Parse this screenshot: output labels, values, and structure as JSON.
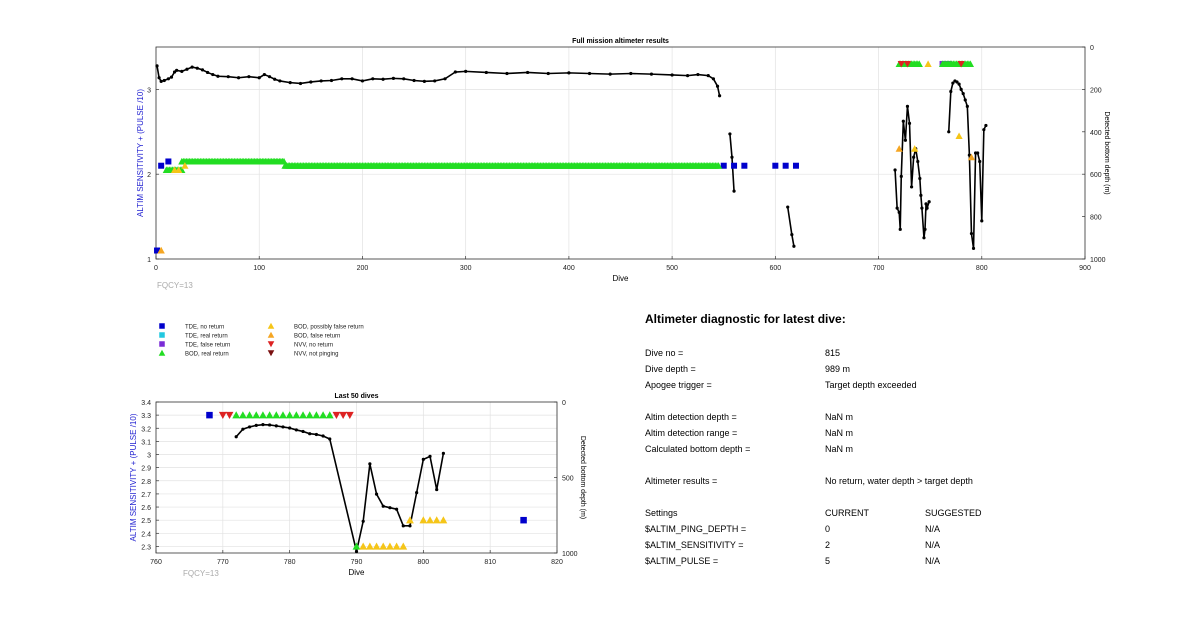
{
  "chart_data": [
    {
      "type": "scatter",
      "title": "Full mission altimeter results",
      "xlabel": "Dive",
      "ylabel": "ALTIM SENSITIVITY + (PULSE /10)",
      "y2label": "Detected bottom depth (m)",
      "xlim": [
        0,
        900
      ],
      "ylim": [
        1,
        3.5
      ],
      "y2lim": [
        1000,
        0
      ],
      "xticks": [
        0,
        100,
        200,
        300,
        400,
        500,
        600,
        700,
        800,
        900
      ],
      "yticks": [
        1,
        2,
        3
      ],
      "y2ticks": [
        0,
        200,
        400,
        600,
        800,
        1000
      ],
      "grid": true,
      "note": "FQCY=13",
      "depth_series": {
        "name": "Detected bottom depth",
        "points": [
          [
            1,
            89
          ],
          [
            3,
            145
          ],
          [
            5,
            162
          ],
          [
            8,
            158
          ],
          [
            12,
            150
          ],
          [
            15,
            142
          ],
          [
            18,
            118
          ],
          [
            20,
            110
          ],
          [
            25,
            115
          ],
          [
            30,
            105
          ],
          [
            35,
            95
          ],
          [
            40,
            100
          ],
          [
            45,
            108
          ],
          [
            50,
            120
          ],
          [
            55,
            130
          ],
          [
            60,
            138
          ],
          [
            70,
            140
          ],
          [
            80,
            145
          ],
          [
            90,
            140
          ],
          [
            100,
            145
          ],
          [
            105,
            130
          ],
          [
            110,
            140
          ],
          [
            115,
            152
          ],
          [
            120,
            160
          ],
          [
            130,
            168
          ],
          [
            140,
            172
          ],
          [
            150,
            165
          ],
          [
            160,
            160
          ],
          [
            170,
            158
          ],
          [
            180,
            150
          ],
          [
            190,
            150
          ],
          [
            200,
            160
          ],
          [
            210,
            150
          ],
          [
            220,
            152
          ],
          [
            230,
            148
          ],
          [
            240,
            150
          ],
          [
            250,
            158
          ],
          [
            260,
            162
          ],
          [
            270,
            160
          ],
          [
            280,
            150
          ],
          [
            290,
            118
          ],
          [
            300,
            115
          ],
          [
            320,
            120
          ],
          [
            340,
            125
          ],
          [
            360,
            120
          ],
          [
            380,
            125
          ],
          [
            400,
            122
          ],
          [
            420,
            125
          ],
          [
            440,
            128
          ],
          [
            460,
            125
          ],
          [
            480,
            128
          ],
          [
            500,
            132
          ],
          [
            515,
            135
          ],
          [
            525,
            130
          ],
          [
            535,
            135
          ],
          [
            540,
            150
          ],
          [
            544,
            185
          ],
          [
            546,
            230
          ]
        ],
        "dive_points": [
          [
            556,
            410
          ],
          [
            558,
            520
          ],
          [
            560,
            680
          ],
          [
            612,
            755
          ],
          [
            616,
            885
          ],
          [
            618,
            940
          ],
          [
            716,
            580
          ],
          [
            718,
            760
          ],
          [
            720,
            780
          ],
          [
            721,
            860
          ],
          [
            722,
            610
          ],
          [
            724,
            350
          ],
          [
            726,
            440
          ],
          [
            728,
            280
          ],
          [
            730,
            360
          ],
          [
            732,
            660
          ],
          [
            734,
            520
          ],
          [
            736,
            480
          ],
          [
            738,
            540
          ],
          [
            740,
            620
          ],
          [
            741,
            700
          ],
          [
            742,
            760
          ],
          [
            744,
            900
          ],
          [
            745,
            860
          ],
          [
            746,
            740
          ],
          [
            747,
            760
          ],
          [
            749,
            730
          ],
          [
            768,
            400
          ],
          [
            770,
            210
          ],
          [
            772,
            170
          ],
          [
            774,
            160
          ],
          [
            776,
            165
          ],
          [
            778,
            175
          ],
          [
            780,
            200
          ],
          [
            782,
            220
          ],
          [
            784,
            250
          ],
          [
            786,
            280
          ],
          [
            788,
            510
          ],
          [
            790,
            880
          ],
          [
            792,
            950
          ],
          [
            794,
            500
          ],
          [
            796,
            500
          ],
          [
            798,
            540
          ],
          [
            800,
            820
          ],
          [
            802,
            390
          ],
          [
            804,
            370
          ]
        ]
      },
      "markers": {
        "TDE_no_return": [
          [
            1,
            1.1
          ],
          [
            5,
            2.1
          ],
          [
            12,
            2.15
          ],
          [
            550,
            2.1
          ],
          [
            560,
            2.1
          ],
          [
            570,
            2.1
          ],
          [
            600,
            2.1
          ],
          [
            610,
            2.1
          ],
          [
            620,
            2.1
          ]
        ],
        "TDE_false_return": [
          [
            762,
            3.3
          ],
          [
            768,
            3.3
          ]
        ],
        "BOD_real_return": {
          "segments": [
            [
              10,
              25,
              2.05
            ],
            [
              25,
              125,
              2.15
            ],
            [
              125,
              545,
              2.1
            ],
            [
              720,
              740,
              3.3
            ],
            [
              762,
              790,
              3.3
            ]
          ]
        },
        "BOD_possibly_false_return": [
          [
            5,
            1.1
          ],
          [
            18,
            2.05
          ],
          [
            22,
            2.05
          ],
          [
            28,
            2.1
          ],
          [
            735,
            2.3
          ],
          [
            748,
            3.3
          ],
          [
            778,
            2.45
          ]
        ],
        "BOD_false_return": [
          [
            5,
            1.1
          ],
          [
            720,
            2.3
          ],
          [
            790,
            2.2
          ]
        ],
        "NVV_no_return": [
          [
            722,
            3.3
          ],
          [
            728,
            3.3
          ],
          [
            780,
            3.3
          ]
        ]
      }
    },
    {
      "type": "scatter",
      "title": "Last 50 dives",
      "xlabel": "Dive",
      "ylabel": "ALTIM SENSITIVITY + (PULSE /10)",
      "y2label": "Detected bottom depth (m)",
      "xlim": [
        760,
        820
      ],
      "ylim": [
        2.25,
        3.4
      ],
      "y2lim": [
        1000,
        0
      ],
      "xticks": [
        760,
        770,
        780,
        790,
        800,
        810,
        820
      ],
      "yticks": [
        2.3,
        2.4,
        2.5,
        2.6,
        2.7,
        2.8,
        2.9,
        3,
        3.1,
        3.2,
        3.3,
        3.4
      ],
      "y2ticks": [
        0,
        500,
        1000
      ],
      "grid": true,
      "note": "FQCY=13",
      "depth_series": {
        "name": "Detected bottom depth",
        "points": [
          [
            772,
            230
          ],
          [
            773,
            180
          ],
          [
            774,
            165
          ],
          [
            775,
            155
          ],
          [
            776,
            150
          ],
          [
            777,
            152
          ],
          [
            778,
            158
          ],
          [
            779,
            165
          ],
          [
            780,
            172
          ],
          [
            781,
            185
          ],
          [
            782,
            195
          ],
          [
            783,
            210
          ],
          [
            784,
            215
          ],
          [
            785,
            225
          ],
          [
            786,
            245
          ],
          [
            790,
            990
          ],
          [
            791,
            790
          ],
          [
            792,
            410
          ],
          [
            793,
            610
          ],
          [
            794,
            690
          ],
          [
            795,
            700
          ],
          [
            796,
            710
          ],
          [
            797,
            820
          ],
          [
            798,
            820
          ],
          [
            799,
            600
          ],
          [
            800,
            380
          ],
          [
            801,
            360
          ],
          [
            802,
            580
          ],
          [
            803,
            340
          ]
        ]
      },
      "markers": {
        "TDE_no_return": [
          [
            768,
            3.3
          ],
          [
            815,
            2.5
          ]
        ],
        "NVV_no_return": [
          [
            770,
            3.3
          ],
          [
            771,
            3.3
          ],
          [
            787,
            3.3
          ],
          [
            788,
            3.3
          ],
          [
            789,
            3.3
          ]
        ],
        "BOD_real_return": [
          [
            772,
            3.3
          ],
          [
            773,
            3.3
          ],
          [
            774,
            3.3
          ],
          [
            775,
            3.3
          ],
          [
            776,
            3.3
          ],
          [
            777,
            3.3
          ],
          [
            778,
            3.3
          ],
          [
            779,
            3.3
          ],
          [
            780,
            3.3
          ],
          [
            781,
            3.3
          ],
          [
            782,
            3.3
          ],
          [
            783,
            3.3
          ],
          [
            784,
            3.3
          ],
          [
            785,
            3.3
          ],
          [
            786,
            3.3
          ],
          [
            790,
            2.3
          ]
        ],
        "BOD_possibly_false_return": [
          [
            791,
            2.3
          ],
          [
            792,
            2.3
          ],
          [
            793,
            2.3
          ],
          [
            794,
            2.3
          ],
          [
            795,
            2.3
          ],
          [
            796,
            2.3
          ],
          [
            797,
            2.3
          ],
          [
            798,
            2.5
          ],
          [
            800,
            2.5
          ],
          [
            801,
            2.5
          ],
          [
            802,
            2.5
          ],
          [
            803,
            2.5
          ]
        ]
      }
    }
  ],
  "legend": {
    "items": [
      {
        "label": "TDE, no return",
        "shape": "square",
        "color": "#0000cc"
      },
      {
        "label": "TDE, real return",
        "shape": "square",
        "color": "#22c8e0"
      },
      {
        "label": "TDE, false return",
        "shape": "square",
        "color": "#7a2bd6"
      },
      {
        "label": "BOD, real return",
        "shape": "triangle-up",
        "color": "#22dd22"
      },
      {
        "label": "BOD, possibly false return",
        "shape": "triangle-up",
        "color": "#f5c518"
      },
      {
        "label": "BOD, false return",
        "shape": "triangle-up",
        "color": "#f5a623"
      },
      {
        "label": "NVV, no return",
        "shape": "triangle-down",
        "color": "#dd2222"
      },
      {
        "label": "NVV, not pinging",
        "shape": "triangle-down",
        "color": "#7a1010"
      }
    ]
  },
  "colors": {
    "axis_label_blue": "#1f1fd0",
    "grid": "#e2e2e2",
    "fqcy_gray": "#aaaaaa"
  },
  "diagnostic": {
    "title": "Altimeter diagnostic for latest dive:",
    "rows": [
      {
        "label": "Dive no =",
        "value": "815"
      },
      {
        "label": "Dive depth =",
        "value": "989 m"
      },
      {
        "label": "Apogee trigger =",
        "value": "Target depth exceeded"
      },
      {
        "label": "Altim detection depth =",
        "value": "NaN m"
      },
      {
        "label": "Altim detection range =",
        "value": "NaN m"
      },
      {
        "label": "Calculated bottom depth =",
        "value": "NaN m"
      },
      {
        "label": "Altimeter results =",
        "value": "No return, water depth > target depth"
      }
    ],
    "settings": {
      "header": [
        "Settings",
        "CURRENT",
        "SUGGESTED"
      ],
      "rows": [
        [
          "$ALTIM_PING_DEPTH =",
          "0",
          "N/A"
        ],
        [
          "$ALTIM_SENSITIVITY =",
          "2",
          "N/A"
        ],
        [
          "$ALTIM_PULSE =",
          "5",
          "N/A"
        ]
      ]
    }
  }
}
